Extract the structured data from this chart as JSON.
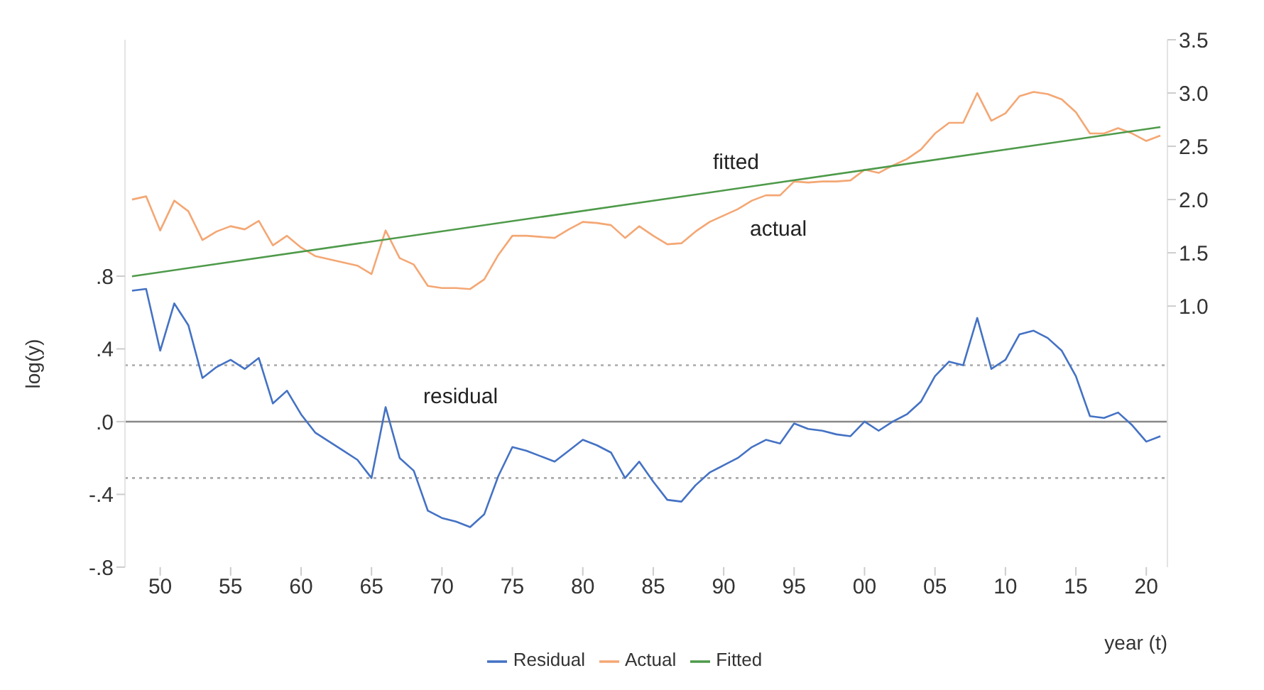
{
  "chart_data": {
    "type": "line",
    "xlabel": "year (t)",
    "ylabel": "log(y)",
    "xlim": [
      1947.5,
      2021.5
    ],
    "xticks": [
      {
        "value": 1950,
        "label": "50"
      },
      {
        "value": 1955,
        "label": "55"
      },
      {
        "value": 1960,
        "label": "60"
      },
      {
        "value": 1965,
        "label": "65"
      },
      {
        "value": 1970,
        "label": "70"
      },
      {
        "value": 1975,
        "label": "75"
      },
      {
        "value": 1980,
        "label": "80"
      },
      {
        "value": 1985,
        "label": "85"
      },
      {
        "value": 1990,
        "label": "90"
      },
      {
        "value": 1995,
        "label": "95"
      },
      {
        "value": 2000,
        "label": "00"
      },
      {
        "value": 2005,
        "label": "05"
      },
      {
        "value": 2010,
        "label": "10"
      },
      {
        "value": 2015,
        "label": "15"
      },
      {
        "value": 2020,
        "label": "20"
      }
    ],
    "ylim": [
      -0.8,
      2.1
    ],
    "yticks": [
      {
        "value": -0.8,
        "label": "-.8"
      },
      {
        "value": -0.4,
        "label": "-.4"
      },
      {
        "value": 0,
        "label": ".0"
      },
      {
        "value": 0.4,
        "label": ".4"
      },
      {
        "value": 0.8,
        "label": ".8"
      }
    ],
    "y2lim": [
      -1.45,
      3.5
    ],
    "y2ticks": [
      {
        "value": 1,
        "label": "1.0"
      },
      {
        "value": 1.5,
        "label": "1.5"
      },
      {
        "value": 2,
        "label": "2.0"
      },
      {
        "value": 2.5,
        "label": "2.5"
      },
      {
        "value": 3,
        "label": "3.0"
      },
      {
        "value": 3.5,
        "label": "3.5"
      }
    ],
    "x": [
      1948,
      1949,
      1950,
      1951,
      1952,
      1953,
      1954,
      1955,
      1956,
      1957,
      1958,
      1959,
      1960,
      1961,
      1962,
      1963,
      1964,
      1965,
      1966,
      1967,
      1968,
      1969,
      1970,
      1971,
      1972,
      1973,
      1974,
      1975,
      1976,
      1977,
      1978,
      1979,
      1980,
      1981,
      1982,
      1983,
      1984,
      1985,
      1986,
      1987,
      1988,
      1989,
      1990,
      1991,
      1992,
      1993,
      1994,
      1995,
      1996,
      1997,
      1998,
      1999,
      2000,
      2001,
      2002,
      2003,
      2004,
      2005,
      2006,
      2007,
      2008,
      2009,
      2010,
      2011,
      2012,
      2013,
      2014,
      2015,
      2016,
      2017,
      2018,
      2019,
      2020,
      2021
    ],
    "series": [
      {
        "name": "Residual",
        "color": "#4472c4",
        "values": [
          0.72,
          0.73,
          0.39,
          0.65,
          0.53,
          0.24,
          0.3,
          0.34,
          0.29,
          0.35,
          0.1,
          0.17,
          0.04,
          -0.06,
          -0.11,
          -0.16,
          -0.21,
          -0.31,
          0.08,
          -0.2,
          -0.27,
          -0.49,
          -0.53,
          -0.55,
          -0.58,
          -0.51,
          -0.3,
          -0.14,
          -0.16,
          -0.19,
          -0.22,
          -0.16,
          -0.1,
          -0.13,
          -0.17,
          -0.31,
          -0.22,
          -0.33,
          -0.43,
          -0.44,
          -0.35,
          -0.28,
          -0.24,
          -0.2,
          -0.14,
          -0.1,
          -0.12,
          -0.01,
          -0.04,
          -0.05,
          -0.07,
          -0.08,
          0,
          -0.05,
          0,
          0.04,
          0.11,
          0.25,
          0.33,
          0.31,
          0.57,
          0.29,
          0.34,
          0.48,
          0.5,
          0.46,
          0.39,
          0.25,
          0.03,
          0.02,
          0.05,
          -0.02,
          -0.11,
          -0.08
        ]
      },
      {
        "name": "Actual",
        "color": "#f4a774",
        "axis": "y2",
        "values": [
          2.0,
          2.03,
          1.71,
          1.99,
          1.89,
          1.62,
          1.7,
          1.75,
          1.72,
          1.8,
          1.57,
          1.66,
          1.55,
          1.47,
          1.44,
          1.41,
          1.38,
          1.3,
          1.71,
          1.45,
          1.39,
          1.19,
          1.17,
          1.17,
          1.16,
          1.25,
          1.48,
          1.66,
          1.66,
          1.65,
          1.64,
          1.72,
          1.79,
          1.78,
          1.76,
          1.64,
          1.75,
          1.66,
          1.58,
          1.59,
          1.7,
          1.79,
          1.85,
          1.91,
          1.99,
          2.04,
          2.04,
          2.17,
          2.16,
          2.17,
          2.17,
          2.18,
          2.28,
          2.25,
          2.32,
          2.38,
          2.47,
          2.62,
          2.72,
          2.72,
          3.0,
          2.74,
          2.81,
          2.97,
          3.01,
          2.99,
          2.94,
          2.82,
          2.62,
          2.62,
          2.67,
          2.62,
          2.55,
          2.6
        ]
      },
      {
        "name": "Fitted",
        "color": "#4e9a4a",
        "axis": "y2",
        "x": [
          1948,
          2021
        ],
        "values": [
          1.28,
          2.68
        ]
      }
    ],
    "ref_lines": [
      {
        "axis": "y",
        "value": 0,
        "color": "#888888",
        "line_style": "solid"
      },
      {
        "axis": "y",
        "value": 0.31,
        "color": "#aaaaaa",
        "line_style": "dotted"
      },
      {
        "axis": "y",
        "value": -0.31,
        "color": "#aaaaaa",
        "line_style": "dotted"
      }
    ],
    "annotations": [
      "fitted",
      "actual",
      "residual"
    ],
    "legend": "bottom",
    "grid": false,
    "marker": "none",
    "line_style": "solid"
  }
}
